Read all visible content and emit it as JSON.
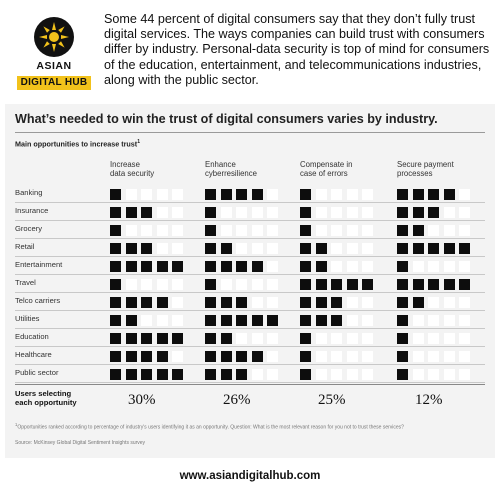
{
  "brand": {
    "line1": "ASIAN",
    "line2": "DIGITAL HUB",
    "mark_color": "#f2c21b"
  },
  "intro": "Some 44 percent of digital consumers say that they don’t fully trust digital services. The ways companies can build trust with consumers differ by industry. Personal-data security is top of mind for consumers of the education, entertainment, and telecommunications industries, along with the public sector.",
  "website": "www.asiandigitalhub.com",
  "chart_data": {
    "type": "table",
    "title": "What’s needed to win the trust of digital consumers varies by industry.",
    "subtitle": "Main opportunities to increase trust",
    "subtitle_marker": "1",
    "columns": [
      {
        "label": "Increase data security",
        "line1": "Increase",
        "line2": "data security",
        "users_selecting": "30%"
      },
      {
        "label": "Enhance cyberresilience",
        "line1": "Enhance",
        "line2": "cyberresilience",
        "users_selecting": "26%"
      },
      {
        "label": "Compensate in case of errors",
        "line1": "Compensate in",
        "line2": "case of errors",
        "users_selecting": "25%"
      },
      {
        "label": "Secure payment processes",
        "line1": "Secure payment",
        "line2": "processes",
        "users_selecting": "12%"
      }
    ],
    "rows": [
      {
        "industry": "Banking",
        "values": [
          1,
          4,
          1,
          4
        ]
      },
      {
        "industry": "Insurance",
        "values": [
          3,
          1,
          1,
          3
        ]
      },
      {
        "industry": "Grocery",
        "values": [
          1,
          1,
          1,
          2
        ]
      },
      {
        "industry": "Retail",
        "values": [
          3,
          2,
          2,
          5
        ]
      },
      {
        "industry": "Entertainment",
        "values": [
          5,
          4,
          2,
          1
        ]
      },
      {
        "industry": "Travel",
        "values": [
          1,
          1,
          5,
          5
        ]
      },
      {
        "industry": "Telco carriers",
        "values": [
          4,
          3,
          3,
          2
        ]
      },
      {
        "industry": "Utilities",
        "values": [
          2,
          5,
          3,
          1
        ]
      },
      {
        "industry": "Education",
        "values": [
          5,
          2,
          1,
          1
        ]
      },
      {
        "industry": "Healthcare",
        "values": [
          4,
          4,
          1,
          1
        ]
      },
      {
        "industry": "Public sector",
        "values": [
          5,
          3,
          1,
          1
        ]
      }
    ],
    "max_value": 5,
    "users_selecting_label": [
      "Users selecting",
      "each opportunity"
    ],
    "footnote": "Opportunities ranked according to percentage of industry's users identifying it as an opportunity. Question: What is the most relevant reason for you not to trust these services?",
    "footnote_marker": "1",
    "source": "Source: McKinsey Global Digital Sentiment Insights survey",
    "colors": {
      "filled": "#0d0d0d",
      "empty": "#ffffff",
      "panel": "#f3f3f3"
    }
  }
}
